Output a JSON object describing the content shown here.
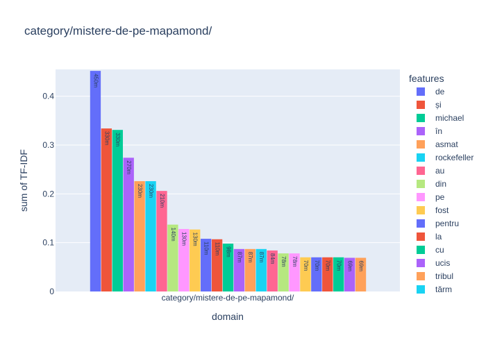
{
  "chart_data": {
    "type": "bar",
    "title": "category/mistere-de-pe-mapamond/",
    "xlabel": "domain",
    "ylabel": "sum of TF-IDF",
    "categories": [
      "category/mistere-de-pe-mapamond/"
    ],
    "ylim": [
      0,
      0.455
    ],
    "yticks": [
      0,
      0.1,
      0.2,
      0.3,
      0.4
    ],
    "ytick_labels": [
      "0",
      "0.1",
      "0.2",
      "0.3",
      "0.4"
    ],
    "legend_title": "features",
    "legend_position": "right",
    "grid": true,
    "series": [
      {
        "name": "de",
        "value": 0.452,
        "label": "450m",
        "color": "#636efa"
      },
      {
        "name": "și",
        "value": 0.334,
        "label": "330m",
        "color": "#EF553B"
      },
      {
        "name": "michael",
        "value": 0.331,
        "label": "330m",
        "color": "#00cc96"
      },
      {
        "name": "în",
        "value": 0.274,
        "label": "270m",
        "color": "#ab63fa"
      },
      {
        "name": "asmat",
        "value": 0.226,
        "label": "230m",
        "color": "#FFA15A"
      },
      {
        "name": "rockefeller",
        "value": 0.226,
        "label": "230m",
        "color": "#19d3f3"
      },
      {
        "name": "au",
        "value": 0.206,
        "label": "210m",
        "color": "#FF6692"
      },
      {
        "name": "din",
        "value": 0.137,
        "label": "140m",
        "color": "#B6E880"
      },
      {
        "name": "pe",
        "value": 0.128,
        "label": "130m",
        "color": "#FF97FF"
      },
      {
        "name": "fost",
        "value": 0.127,
        "label": "130m",
        "color": "#FECB52"
      },
      {
        "name": "pentru",
        "value": 0.108,
        "label": "110m",
        "color": "#636efa"
      },
      {
        "name": "la",
        "value": 0.107,
        "label": "110m",
        "color": "#EF553B"
      },
      {
        "name": "cu",
        "value": 0.098,
        "label": "98m",
        "color": "#00cc96"
      },
      {
        "name": "ucis",
        "value": 0.087,
        "label": "87m",
        "color": "#ab63fa"
      },
      {
        "name": "tribul",
        "value": 0.087,
        "label": "87m",
        "color": "#FFA15A"
      },
      {
        "name": "tărm",
        "value": 0.087,
        "label": "87m",
        "color": "#19d3f3"
      },
      {
        "name": "",
        "value": 0.084,
        "label": "84m",
        "color": "#FF6692"
      },
      {
        "name": "",
        "value": 0.078,
        "label": "78m",
        "color": "#B6E880"
      },
      {
        "name": "",
        "value": 0.078,
        "label": "78m",
        "color": "#FF97FF"
      },
      {
        "name": "",
        "value": 0.07,
        "label": "70m",
        "color": "#FECB52"
      },
      {
        "name": "",
        "value": 0.07,
        "label": "70m",
        "color": "#636efa"
      },
      {
        "name": "",
        "value": 0.07,
        "label": "70m",
        "color": "#EF553B"
      },
      {
        "name": "",
        "value": 0.07,
        "label": "70m",
        "color": "#00cc96"
      },
      {
        "name": "",
        "value": 0.069,
        "label": "69m",
        "color": "#ab63fa"
      },
      {
        "name": "",
        "value": 0.069,
        "label": "69m",
        "color": "#FFA15A"
      }
    ]
  }
}
